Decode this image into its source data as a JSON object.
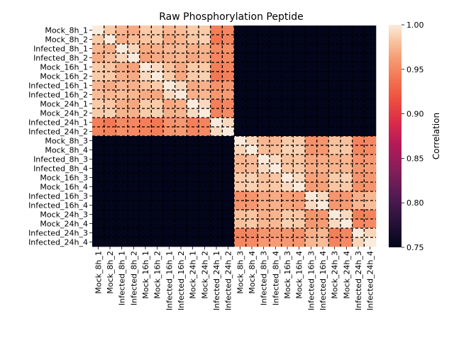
{
  "chart_data": {
    "type": "heatmap",
    "title": "Raw Phosphorylation Peptide",
    "xlabel": "",
    "ylabel": "",
    "labels": [
      "Mock_8h_1",
      "Mock_8h_2",
      "Infected_8h_1",
      "Infected_8h_2",
      "Mock_16h_1",
      "Mock_16h_2",
      "Infected_16h_1",
      "Infected_16h_2",
      "Mock_24h_1",
      "Mock_24h_2",
      "Infected_24h_1",
      "Infected_24h_2",
      "Mock_8h_3",
      "Mock_8h_4",
      "Infected_8h_3",
      "Infected_8h_4",
      "Mock_16h_3",
      "Mock_16h_4",
      "Infected_16h_3",
      "Infected_16h_4",
      "Mock_24h_3",
      "Mock_24h_4",
      "Infected_24h_3",
      "Infected_24h_4"
    ],
    "colorbar": {
      "label": "Correlation",
      "min": 0.75,
      "max": 1.0,
      "ticks": [
        0.75,
        0.8,
        0.85,
        0.9,
        0.95,
        1.0
      ],
      "tick_labels": [
        "0.75",
        "0.80",
        "0.85",
        "0.90",
        "0.95",
        "1.00"
      ]
    },
    "grid_lines": "dashed black between cells",
    "block_values": {
      "A": [
        [
          1.0,
          0.985,
          0.975,
          0.97,
          0.985,
          0.985,
          0.975,
          0.978,
          0.985,
          0.985,
          0.945,
          0.95
        ],
        [
          0.985,
          1.0,
          0.972,
          0.978,
          0.982,
          0.985,
          0.97,
          0.975,
          0.983,
          0.988,
          0.942,
          0.948
        ],
        [
          0.975,
          0.972,
          1.0,
          0.99,
          0.97,
          0.972,
          0.975,
          0.978,
          0.972,
          0.974,
          0.952,
          0.955
        ],
        [
          0.97,
          0.978,
          0.99,
          1.0,
          0.965,
          0.97,
          0.972,
          0.975,
          0.968,
          0.972,
          0.95,
          0.952
        ],
        [
          0.985,
          0.982,
          0.97,
          0.965,
          1.0,
          0.992,
          0.98,
          0.97,
          0.985,
          0.985,
          0.945,
          0.948
        ],
        [
          0.985,
          0.985,
          0.972,
          0.97,
          0.992,
          1.0,
          0.985,
          0.968,
          0.985,
          0.988,
          0.942,
          0.946
        ],
        [
          0.975,
          0.97,
          0.975,
          0.972,
          0.98,
          0.985,
          1.0,
          0.992,
          0.968,
          0.972,
          0.956,
          0.958
        ],
        [
          0.978,
          0.975,
          0.978,
          0.975,
          0.97,
          0.968,
          0.992,
          1.0,
          0.972,
          0.975,
          0.96,
          0.962
        ],
        [
          0.985,
          0.983,
          0.972,
          0.968,
          0.985,
          0.985,
          0.968,
          0.972,
          1.0,
          0.992,
          0.945,
          0.95
        ],
        [
          0.985,
          0.988,
          0.974,
          0.972,
          0.985,
          0.988,
          0.972,
          0.975,
          0.992,
          1.0,
          0.948,
          0.952
        ],
        [
          0.945,
          0.942,
          0.952,
          0.95,
          0.945,
          0.942,
          0.956,
          0.96,
          0.945,
          0.948,
          1.0,
          0.992
        ],
        [
          0.95,
          0.948,
          0.955,
          0.952,
          0.948,
          0.946,
          0.958,
          0.962,
          0.95,
          0.952,
          0.992,
          1.0
        ]
      ],
      "B": [
        [
          1.0,
          0.99,
          0.975,
          0.975,
          0.985,
          0.985,
          0.955,
          0.958,
          0.98,
          0.98,
          0.948,
          0.95
        ],
        [
          0.99,
          1.0,
          0.978,
          0.978,
          0.988,
          0.988,
          0.958,
          0.96,
          0.982,
          0.984,
          0.95,
          0.952
        ],
        [
          0.975,
          0.978,
          1.0,
          0.992,
          0.98,
          0.982,
          0.968,
          0.97,
          0.972,
          0.975,
          0.958,
          0.96
        ],
        [
          0.975,
          0.978,
          0.992,
          1.0,
          0.982,
          0.984,
          0.97,
          0.972,
          0.974,
          0.976,
          0.96,
          0.962
        ],
        [
          0.985,
          0.988,
          0.98,
          0.982,
          1.0,
          0.992,
          0.965,
          0.968,
          0.985,
          0.988,
          0.958,
          0.96
        ],
        [
          0.985,
          0.988,
          0.982,
          0.984,
          0.992,
          1.0,
          0.962,
          0.965,
          0.982,
          0.985,
          0.955,
          0.958
        ],
        [
          0.955,
          0.958,
          0.968,
          0.97,
          0.965,
          0.962,
          1.0,
          0.992,
          0.958,
          0.96,
          0.972,
          0.975
        ],
        [
          0.958,
          0.96,
          0.97,
          0.972,
          0.968,
          0.965,
          0.992,
          1.0,
          0.96,
          0.962,
          0.975,
          0.978
        ],
        [
          0.98,
          0.982,
          0.972,
          0.974,
          0.985,
          0.982,
          0.958,
          0.96,
          1.0,
          0.992,
          0.945,
          0.948
        ],
        [
          0.98,
          0.984,
          0.975,
          0.976,
          0.988,
          0.985,
          0.96,
          0.962,
          0.992,
          1.0,
          0.95,
          0.952
        ],
        [
          0.948,
          0.95,
          0.958,
          0.96,
          0.958,
          0.955,
          0.972,
          0.975,
          0.945,
          0.95,
          1.0,
          0.99
        ],
        [
          0.95,
          0.952,
          0.96,
          0.962,
          0.96,
          0.958,
          0.975,
          0.978,
          0.948,
          0.952,
          0.99,
          1.0
        ]
      ],
      "off_diagonal": 0.75
    }
  }
}
